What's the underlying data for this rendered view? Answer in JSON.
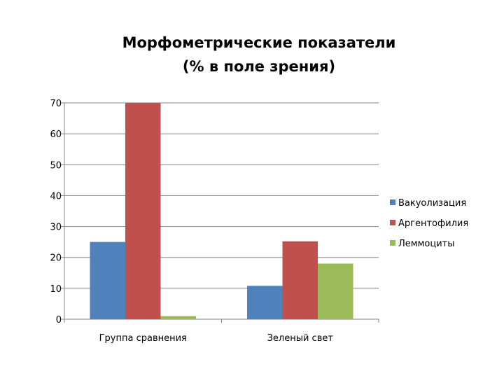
{
  "chart_data": {
    "type": "bar",
    "title_lines": [
      "Морфометрические показатели",
      "(% в поле зрения)"
    ],
    "categories": [
      "Группа сравнения",
      "Зеленый свет"
    ],
    "series": [
      {
        "name": "Вакуолизация",
        "values": [
          25,
          10.8
        ],
        "color": "#4f81bd"
      },
      {
        "name": "Аргентофилия",
        "values": [
          70,
          25.2
        ],
        "color": "#c0504d"
      },
      {
        "name": "Леммоциты",
        "values": [
          1,
          18
        ],
        "color": "#9bbb59"
      }
    ],
    "ylim": [
      0,
      70
    ],
    "yticks": [
      0,
      10,
      20,
      30,
      40,
      50,
      60,
      70
    ],
    "grid": true,
    "legend": "right"
  }
}
